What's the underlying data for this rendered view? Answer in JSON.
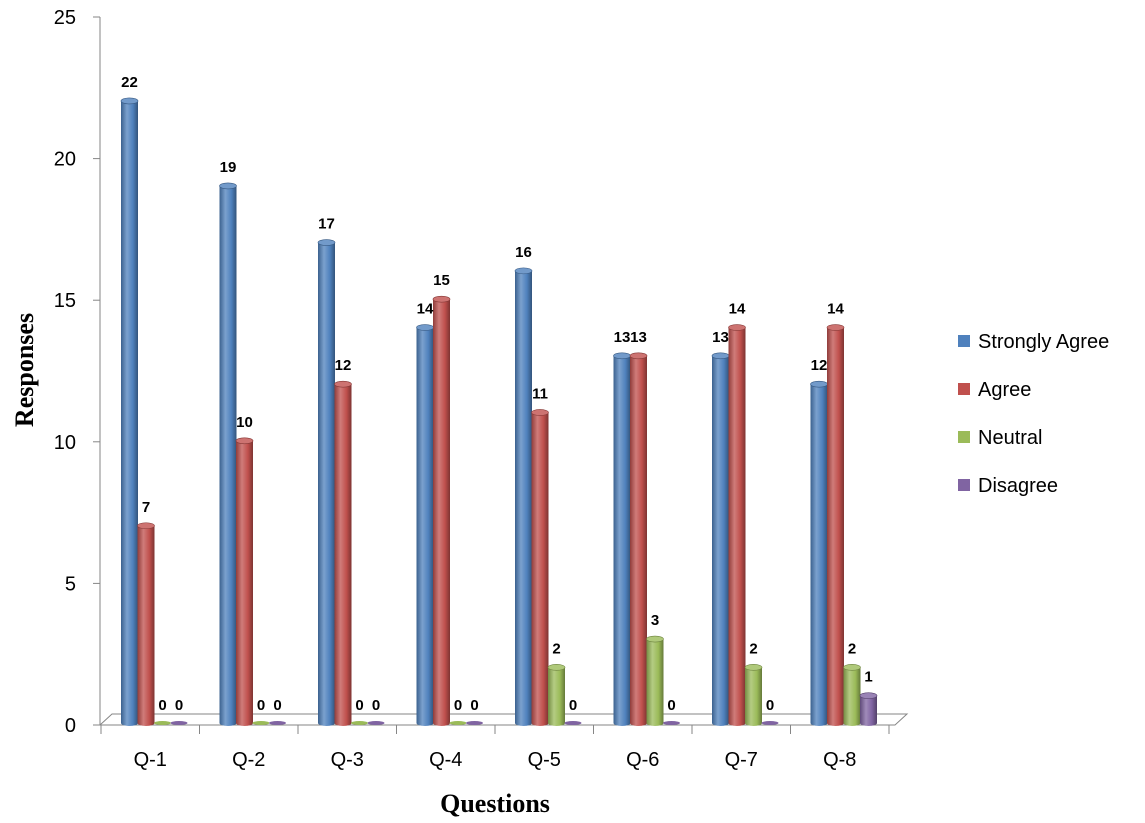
{
  "chart_data": {
    "type": "bar",
    "title": "",
    "xlabel": "Questions",
    "ylabel": "Responses",
    "ylim": [
      0,
      25
    ],
    "yticks": [
      0,
      5,
      10,
      15,
      20,
      25
    ],
    "categories": [
      "Q-1",
      "Q-2",
      "Q-3",
      "Q-4",
      "Q-5",
      "Q-6",
      "Q-7",
      "Q-8"
    ],
    "series": [
      {
        "name": "Strongly Agree",
        "color": "#4f81bd",
        "values": [
          22,
          19,
          17,
          14,
          16,
          13,
          13,
          12
        ]
      },
      {
        "name": "Agree",
        "color": "#c0504d",
        "values": [
          7,
          10,
          12,
          15,
          11,
          13,
          14,
          14
        ]
      },
      {
        "name": "Neutral",
        "color": "#9bbb59",
        "values": [
          0,
          0,
          0,
          0,
          2,
          3,
          2,
          2
        ]
      },
      {
        "name": "Disagree",
        "color": "#8064a2",
        "values": [
          0,
          0,
          0,
          0,
          0,
          0,
          0,
          1
        ]
      }
    ],
    "data_labels": [
      [
        "22",
        "7",
        "0",
        "0"
      ],
      [
        "19",
        "10",
        "0",
        "0"
      ],
      [
        "17",
        "12",
        "0",
        "0"
      ],
      [
        "14",
        "15",
        "0",
        "0"
      ],
      [
        "16",
        "11",
        "2",
        "0"
      ],
      [
        "13",
        "13",
        "3",
        "0"
      ],
      [
        "13",
        "14",
        "2",
        "0"
      ],
      [
        "12",
        "14",
        "2",
        "1"
      ]
    ],
    "legend_position": "right",
    "grid": false,
    "style": "3d-cylinder"
  }
}
